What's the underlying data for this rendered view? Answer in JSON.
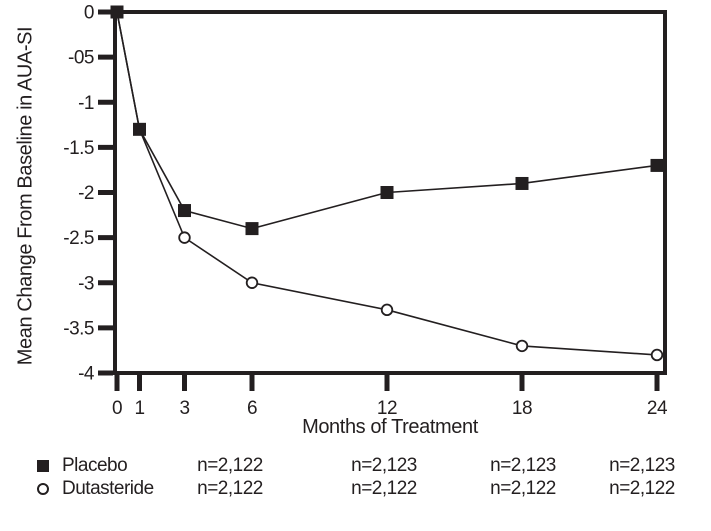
{
  "figure": {
    "background": "#ffffff",
    "ink_color": "#231f20"
  },
  "chart_data": {
    "type": "line",
    "title": "",
    "xlabel": "Months of Treatment",
    "ylabel": "Mean Change From Baseline in AUA-SI",
    "x": [
      0,
      1,
      3,
      6,
      12,
      18,
      24
    ],
    "x_tick_labels": [
      "0",
      "1",
      "3",
      "6",
      "12",
      "18",
      "24"
    ],
    "xlim": [
      0,
      24
    ],
    "y_ticks": [
      0,
      -0.5,
      -1,
      -1.5,
      -2,
      -2.5,
      -3,
      -3.5,
      -4
    ],
    "y_tick_labels": [
      "0",
      "-05",
      "-1",
      "-1.5",
      "-2",
      "-2.5",
      "-3",
      "-3.5",
      "-4"
    ],
    "ylim": [
      -4,
      0
    ],
    "grid": false,
    "frame": "full-box",
    "legend_position": "below-left",
    "series": [
      {
        "name": "Placebo",
        "marker": "filled-square",
        "values": [
          0,
          -1.3,
          -2.2,
          -2.4,
          -2.0,
          -1.9,
          -1.7
        ]
      },
      {
        "name": "Dutasteride",
        "marker": "open-circle",
        "values": [
          0,
          -1.3,
          -2.5,
          -3.0,
          -3.3,
          -3.7,
          -3.8
        ]
      }
    ]
  },
  "legend": {
    "items": [
      {
        "label": "Placebo",
        "marker": "filled-square"
      },
      {
        "label": "Dutasteride",
        "marker": "open-circle"
      }
    ]
  },
  "sample_size_table": {
    "rows": [
      {
        "label": "Placebo",
        "values": [
          "n=2,122",
          "n=2,123",
          "n=2,123",
          "n=2,123"
        ]
      },
      {
        "label": "Dutasteride",
        "values": [
          "n=2,122",
          "n=2,122",
          "n=2,122",
          "n=2,122"
        ]
      }
    ]
  }
}
